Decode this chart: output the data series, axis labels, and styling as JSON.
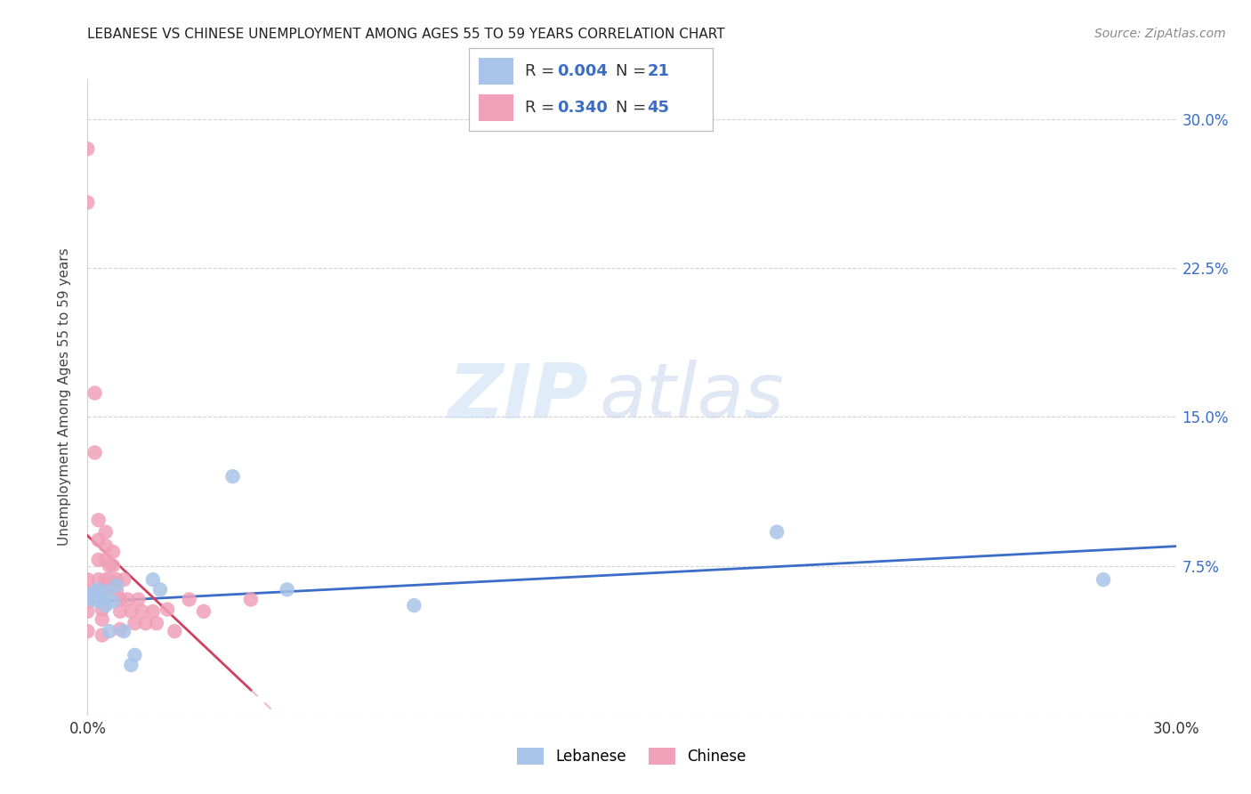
{
  "title": "LEBANESE VS CHINESE UNEMPLOYMENT AMONG AGES 55 TO 59 YEARS CORRELATION CHART",
  "source": "Source: ZipAtlas.com",
  "ylabel": "Unemployment Among Ages 55 to 59 years",
  "xlim": [
    0.0,
    0.3
  ],
  "ylim": [
    0.0,
    0.32
  ],
  "watermark_zip": "ZIP",
  "watermark_atlas": "atlas",
  "lebanese_color": "#a8c4e8",
  "chinese_color": "#f0a0b8",
  "lebanese_R": 0.004,
  "lebanese_N": 21,
  "chinese_R": 0.34,
  "chinese_N": 45,
  "lebanese_x": [
    0.0,
    0.001,
    0.002,
    0.003,
    0.003,
    0.004,
    0.005,
    0.005,
    0.006,
    0.007,
    0.008,
    0.01,
    0.012,
    0.013,
    0.018,
    0.02,
    0.04,
    0.055,
    0.09,
    0.19,
    0.28
  ],
  "lebanese_y": [
    0.06,
    0.058,
    0.062,
    0.057,
    0.063,
    0.058,
    0.055,
    0.062,
    0.042,
    0.057,
    0.065,
    0.042,
    0.025,
    0.03,
    0.068,
    0.063,
    0.12,
    0.063,
    0.055,
    0.092,
    0.068
  ],
  "chinese_x": [
    0.0,
    0.0,
    0.0,
    0.0,
    0.0,
    0.0,
    0.0,
    0.002,
    0.002,
    0.003,
    0.003,
    0.003,
    0.003,
    0.004,
    0.004,
    0.004,
    0.004,
    0.004,
    0.005,
    0.005,
    0.005,
    0.005,
    0.006,
    0.006,
    0.007,
    0.007,
    0.008,
    0.008,
    0.009,
    0.009,
    0.009,
    0.01,
    0.011,
    0.012,
    0.013,
    0.014,
    0.015,
    0.016,
    0.018,
    0.019,
    0.022,
    0.024,
    0.028,
    0.032,
    0.045
  ],
  "chinese_y": [
    0.285,
    0.258,
    0.068,
    0.062,
    0.057,
    0.052,
    0.042,
    0.162,
    0.132,
    0.098,
    0.088,
    0.078,
    0.068,
    0.062,
    0.058,
    0.053,
    0.048,
    0.04,
    0.092,
    0.085,
    0.078,
    0.068,
    0.075,
    0.068,
    0.082,
    0.075,
    0.068,
    0.062,
    0.058,
    0.052,
    0.043,
    0.068,
    0.058,
    0.052,
    0.046,
    0.058,
    0.052,
    0.046,
    0.052,
    0.046,
    0.053,
    0.042,
    0.058,
    0.052,
    0.058
  ],
  "lebanese_line_color": "#3a6cc8",
  "chinese_solid_color": "#d04060",
  "chinese_dash_color": "#e8b0c0",
  "background_color": "#ffffff",
  "grid_color": "#d0d0d0",
  "legend_lebanese": "Lebanese",
  "legend_chinese": "Chinese"
}
